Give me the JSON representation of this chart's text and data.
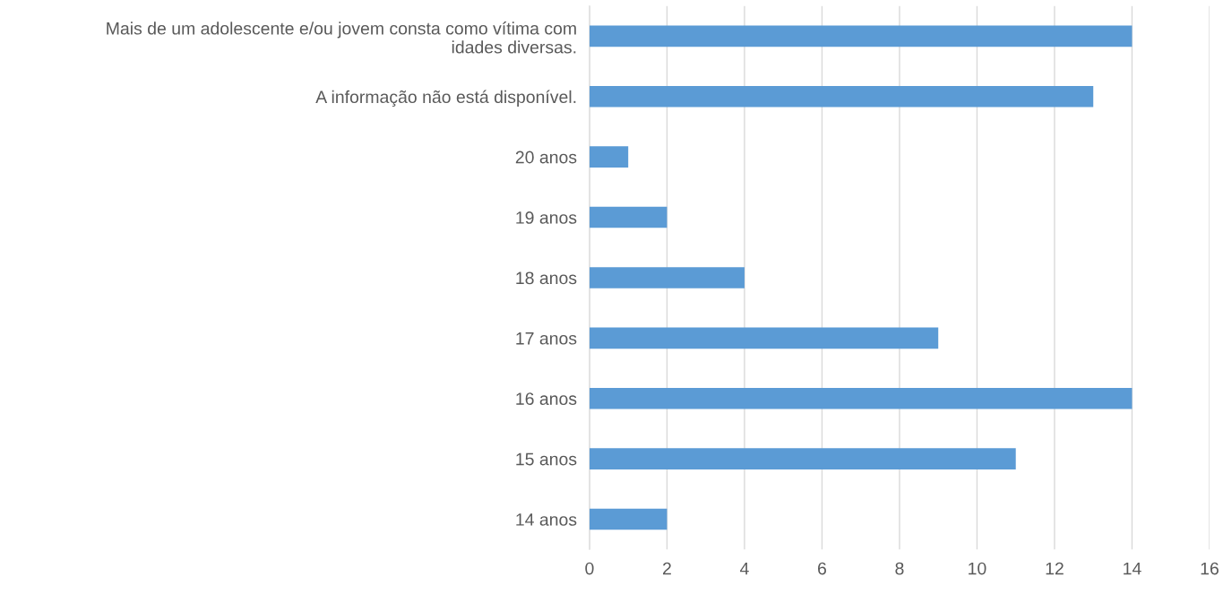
{
  "chart_data": {
    "type": "bar",
    "orientation": "horizontal",
    "categories": [
      "Mais de um adolescente e/ou jovem consta como vítima com idades diversas.",
      "A informação não está disponível.",
      "20 anos",
      "19 anos",
      "18 anos",
      "17 anos",
      "16 anos",
      "15 anos",
      "14 anos"
    ],
    "values": [
      14,
      13,
      1,
      2,
      4,
      9,
      14,
      11,
      2
    ],
    "color": "#5b9bd5",
    "xlim": [
      0,
      16
    ],
    "xticks": [
      0,
      2,
      4,
      6,
      8,
      10,
      12,
      14,
      16
    ],
    "grid": "x"
  }
}
